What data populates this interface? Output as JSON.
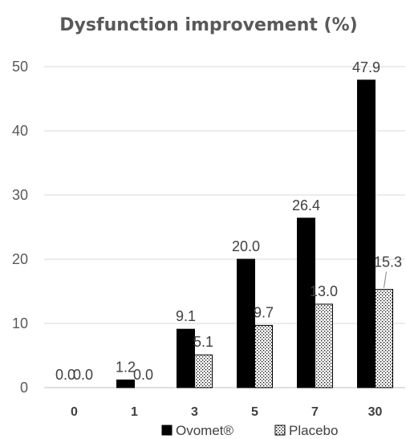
{
  "chart_data": {
    "type": "bar",
    "title": "Dysfunction improvement (%)",
    "xlabel": "",
    "ylabel": "",
    "categories": [
      "0",
      "1",
      "3",
      "5",
      "7",
      "30"
    ],
    "series": [
      {
        "name": "Ovomet®",
        "values": [
          0.0,
          1.2,
          9.1,
          20.0,
          26.4,
          47.9
        ],
        "labels": [
          "0.0",
          "1.2",
          "9.1",
          "20.0",
          "26.4",
          "47.9"
        ],
        "color": "#000000",
        "pattern": "solid"
      },
      {
        "name": "Placebo",
        "values": [
          0.0,
          0.0,
          5.1,
          9.7,
          13.0,
          15.3
        ],
        "labels": [
          "0.0",
          "0.0",
          "5.1",
          "9.7",
          "13.0",
          "15.3"
        ],
        "color": "#000000",
        "pattern": "dotted"
      }
    ],
    "ylim": [
      0,
      50
    ],
    "yticks": [
      "0",
      "10",
      "20",
      "30",
      "40",
      "50"
    ],
    "grid": true,
    "legend": "bottom",
    "colors": {
      "gridline": "#d9d9d9",
      "text": "#595959",
      "axis": "#bfbfbf"
    }
  }
}
